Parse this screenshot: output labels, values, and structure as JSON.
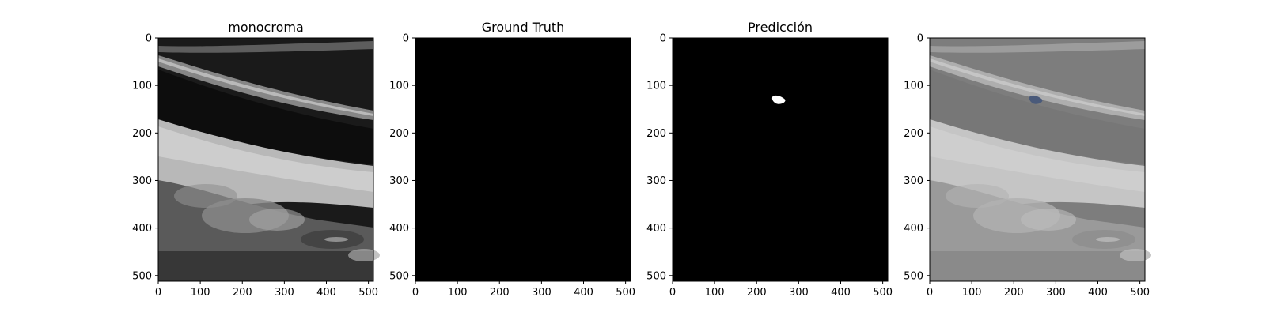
{
  "figure": {
    "panels": [
      {
        "title": "monocroma",
        "content": "ultrasound-image",
        "x_ticks": [
          "0",
          "100",
          "200",
          "300",
          "400",
          "500"
        ],
        "y_ticks": [
          "0",
          "100",
          "200",
          "300",
          "400",
          "500"
        ]
      },
      {
        "title": "Ground Truth",
        "content": "empty-mask",
        "x_ticks": [
          "0",
          "100",
          "200",
          "300",
          "400",
          "500"
        ],
        "y_ticks": [
          "0",
          "100",
          "200",
          "300",
          "400",
          "500"
        ]
      },
      {
        "title": "Predicción",
        "content": "predicted-mask",
        "x_ticks": [
          "0",
          "100",
          "200",
          "300",
          "400",
          "500"
        ],
        "y_ticks": [
          "0",
          "100",
          "200",
          "300",
          "400",
          "500"
        ]
      },
      {
        "title": "",
        "content": "overlay",
        "x_ticks": [
          "0",
          "100",
          "200",
          "300",
          "400",
          "500"
        ],
        "y_ticks": [
          "0",
          "100",
          "200",
          "300",
          "400",
          "500"
        ]
      }
    ],
    "axis_range": [
      0,
      512
    ],
    "tick_values": [
      0,
      100,
      200,
      300,
      400,
      500
    ],
    "mask_color": "#ffffff",
    "overlay_mask_color": "#4a5a7a"
  }
}
